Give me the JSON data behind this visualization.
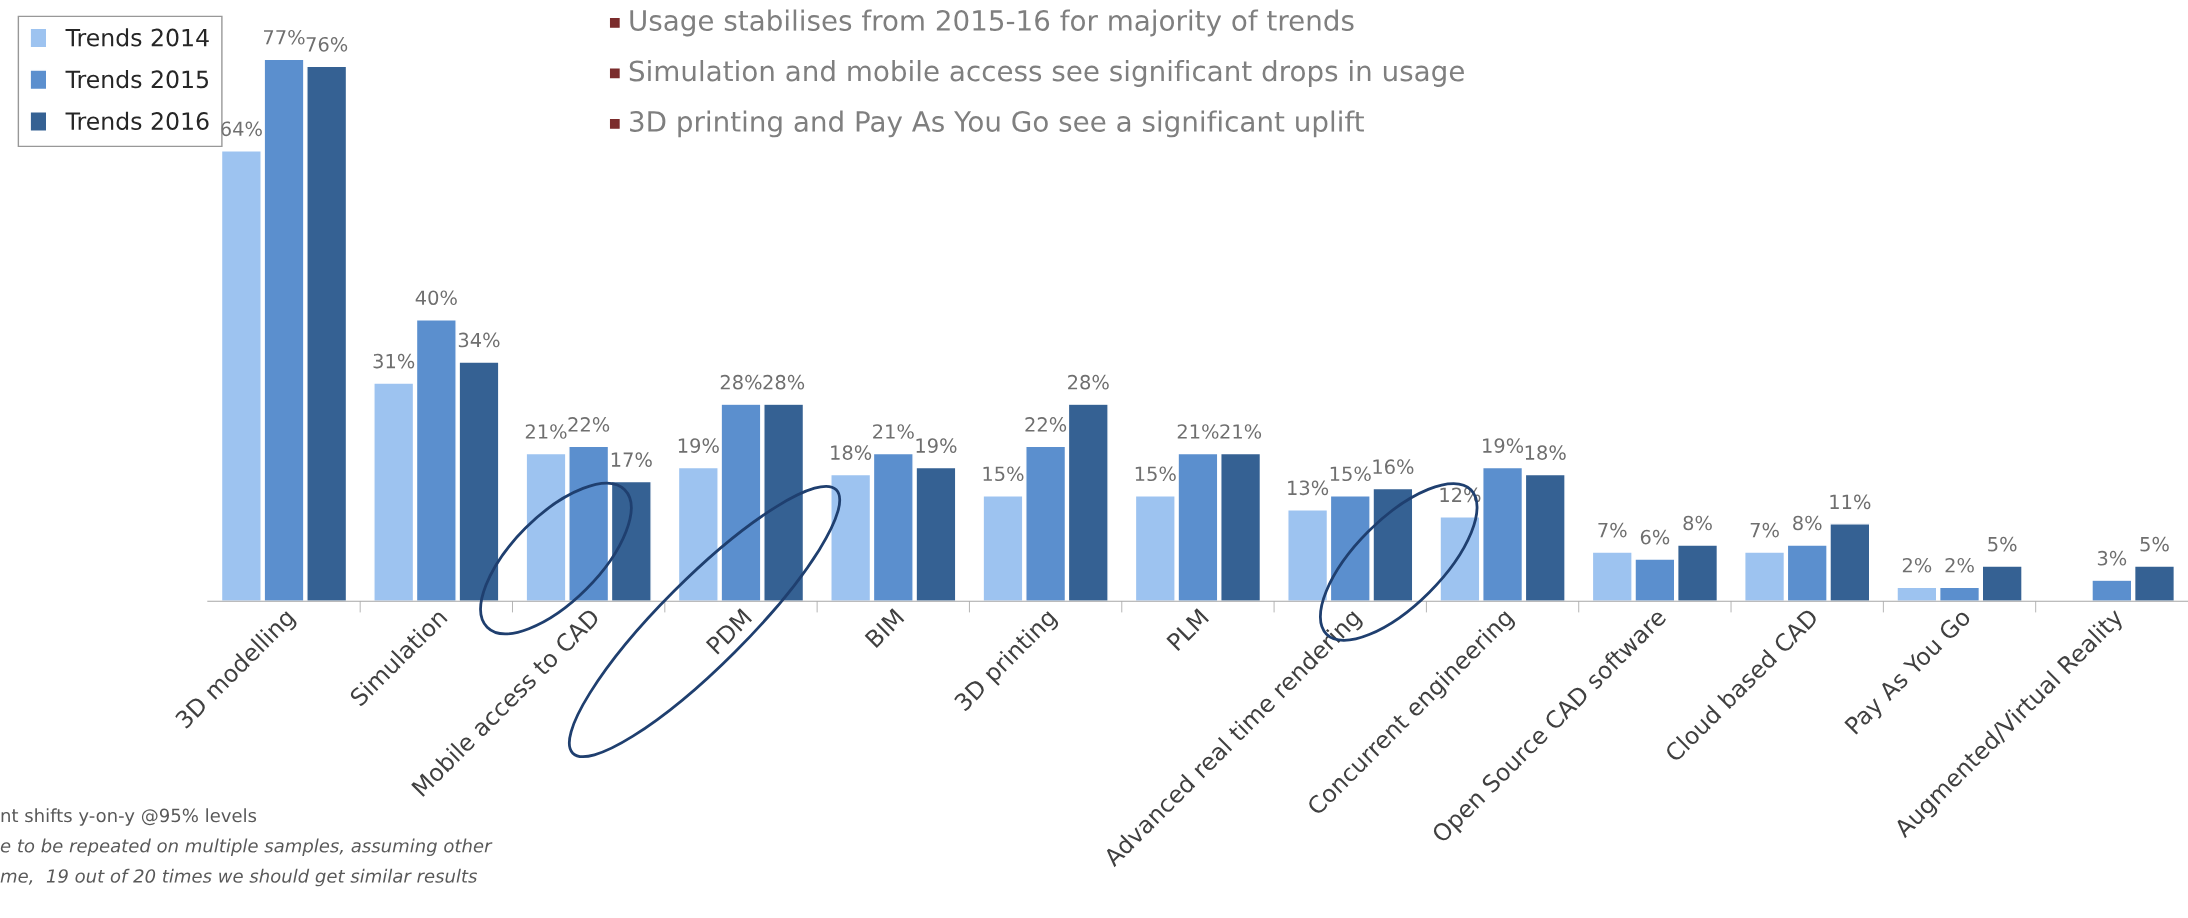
{
  "chart_data": {
    "type": "bar",
    "categories": [
      "3D modelling",
      "Simulation",
      "Mobile access to CAD",
      "PDM",
      "BIM",
      "3D printing",
      "PLM",
      "Advanced real time rendering",
      "Concurrent engineering",
      "Open Source CAD software",
      "Cloud based CAD",
      "Pay As You Go",
      "Augmented/Virtual Reality"
    ],
    "series": [
      {
        "name": "Trends 2014",
        "color": "#9dc3f0",
        "values": [
          64,
          31,
          21,
          19,
          18,
          15,
          15,
          13,
          12,
          7,
          7,
          2,
          null
        ],
        "value_labels": [
          "64%",
          "31%",
          "21%",
          "19%",
          "18%",
          "15%",
          "15%",
          "13%",
          "12%",
          "7%",
          "7%",
          "2%",
          null
        ]
      },
      {
        "name": "Trends 2015",
        "color": "#5b8fce",
        "values": [
          77,
          40,
          22,
          28,
          21,
          22,
          21,
          15,
          19,
          6,
          8,
          2,
          3
        ],
        "value_labels": [
          "77%",
          "40%",
          "22%",
          "28%",
          "21%",
          "22%",
          "21%",
          "15%",
          "19%",
          "6%",
          "8%",
          "2%",
          "3%"
        ]
      },
      {
        "name": "Trends 2016",
        "color": "#356193",
        "values": [
          76,
          34,
          17,
          28,
          19,
          28,
          21,
          16,
          18,
          8,
          11,
          5,
          5
        ],
        "value_labels": [
          "76%",
          "34%",
          "17%",
          "28%",
          "19%",
          "28%",
          "21%",
          "16%",
          "18%",
          "8%",
          "11%",
          "5%",
          "5%"
        ]
      }
    ],
    "legend": "top left",
    "annotations": [
      "Usage stabilises from 2015-16 for majority of trends",
      "Simulation and mobile access see significant drops in usage",
      "3D printing and Pay As You Go see a significant uplift",
      "nt shifts y-on-y @95% levels",
      "e to be repeated on multiple samples, assuming other",
      "me,  19 out of 20 times we should get similar results"
    ]
  }
}
